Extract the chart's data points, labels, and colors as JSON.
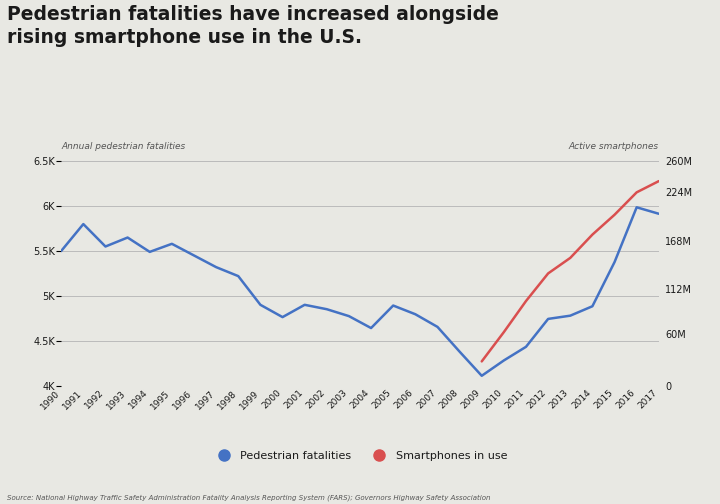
{
  "title_line1": "Pedestrian fatalities have increased alongside",
  "title_line2": "rising smartphone use in the U.S.",
  "left_axis_label": "Annual pedestrian fatalities",
  "right_axis_label": "Active smartphones",
  "source_text": "Source: National Highway Traffic Safety Administration Fatality Analysis Reporting System (FARS); Governors Highway Safety Association",
  "background_color": "#e8e8e3",
  "years": [
    1990,
    1991,
    1992,
    1993,
    1994,
    1995,
    1996,
    1997,
    1998,
    1999,
    2000,
    2001,
    2002,
    2003,
    2004,
    2005,
    2006,
    2007,
    2008,
    2009,
    2010,
    2011,
    2012,
    2013,
    2014,
    2015,
    2016,
    2017
  ],
  "pedestrian_fatalities": [
    5500,
    5800,
    5550,
    5650,
    5490,
    5580,
    5450,
    5320,
    5220,
    4900,
    4763,
    4900,
    4851,
    4774,
    4641,
    4892,
    4795,
    4654,
    4378,
    4109,
    4280,
    4432,
    4743,
    4779,
    4884,
    5376,
    5987,
    5915
  ],
  "smartphone_years": [
    2009,
    2010,
    2011,
    2012,
    2013,
    2014,
    2015,
    2016,
    2017
  ],
  "smartphone_users": [
    28,
    62,
    98,
    130,
    148,
    175,
    198,
    224,
    237
  ],
  "ped_color": "#4472c4",
  "phone_color": "#d94f4f",
  "grid_color": "#bbbbbb",
  "text_color": "#1a1a1a",
  "label_color": "#555555",
  "ylim_left": [
    4000,
    6500
  ],
  "ylim_right": [
    0,
    260
  ],
  "yticks_left": [
    4000,
    4500,
    5000,
    5500,
    6000,
    6500
  ],
  "ytick_labels_left": [
    "4K",
    "4.5K",
    "5K",
    "5.5K",
    "6K",
    "6.5K"
  ],
  "ytick_labels_right": [
    "0",
    "60M",
    "112M",
    "168M",
    "224M",
    "260M"
  ],
  "yticks_right_vals": [
    0,
    60,
    112,
    168,
    224,
    260
  ],
  "legend_ped": "Pedestrian fatalities",
  "legend_phone": "Smartphones in use"
}
